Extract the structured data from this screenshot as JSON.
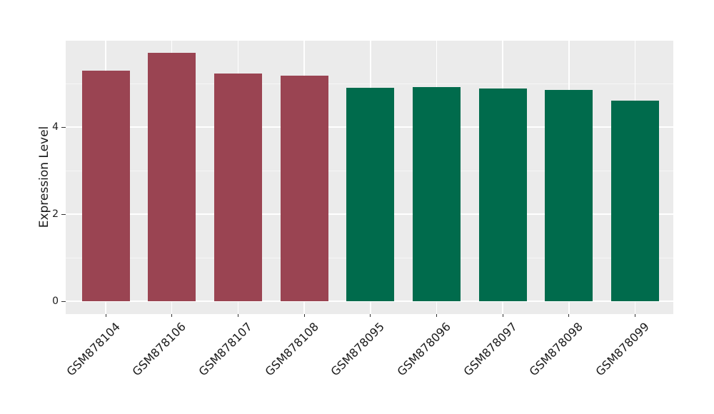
{
  "chart_data": {
    "type": "bar",
    "title": "",
    "xlabel": "",
    "ylabel": "Expression Level",
    "categories": [
      "GSM878104",
      "GSM878106",
      "GSM878107",
      "GSM878108",
      "GSM878095",
      "GSM878096",
      "GSM878097",
      "GSM878098",
      "GSM878099"
    ],
    "values": [
      5.3,
      5.7,
      5.23,
      5.18,
      4.91,
      4.92,
      4.89,
      4.86,
      4.61
    ],
    "bar_colors": [
      "#9a4452",
      "#9a4452",
      "#9a4452",
      "#9a4452",
      "#006b4c",
      "#006b4c",
      "#006b4c",
      "#006b4c",
      "#006b4c"
    ],
    "groups": [
      {
        "name": "red-group",
        "color": "#9a4452",
        "members": [
          "GSM878104",
          "GSM878106",
          "GSM878107",
          "GSM878108"
        ]
      },
      {
        "name": "green-group",
        "color": "#006b4c",
        "members": [
          "GSM878095",
          "GSM878096",
          "GSM878097",
          "GSM878098",
          "GSM878099"
        ]
      }
    ],
    "ylim": [
      0,
      6
    ],
    "yticks": [
      0,
      2,
      4
    ],
    "yticks_minor": [
      1,
      3,
      5
    ],
    "grid": true,
    "legend": "none",
    "panel_background": "#ebebeb",
    "gridline_color": "#ffffff",
    "text_color": "#1a1a1a",
    "xtick_rotation_deg": 45
  }
}
